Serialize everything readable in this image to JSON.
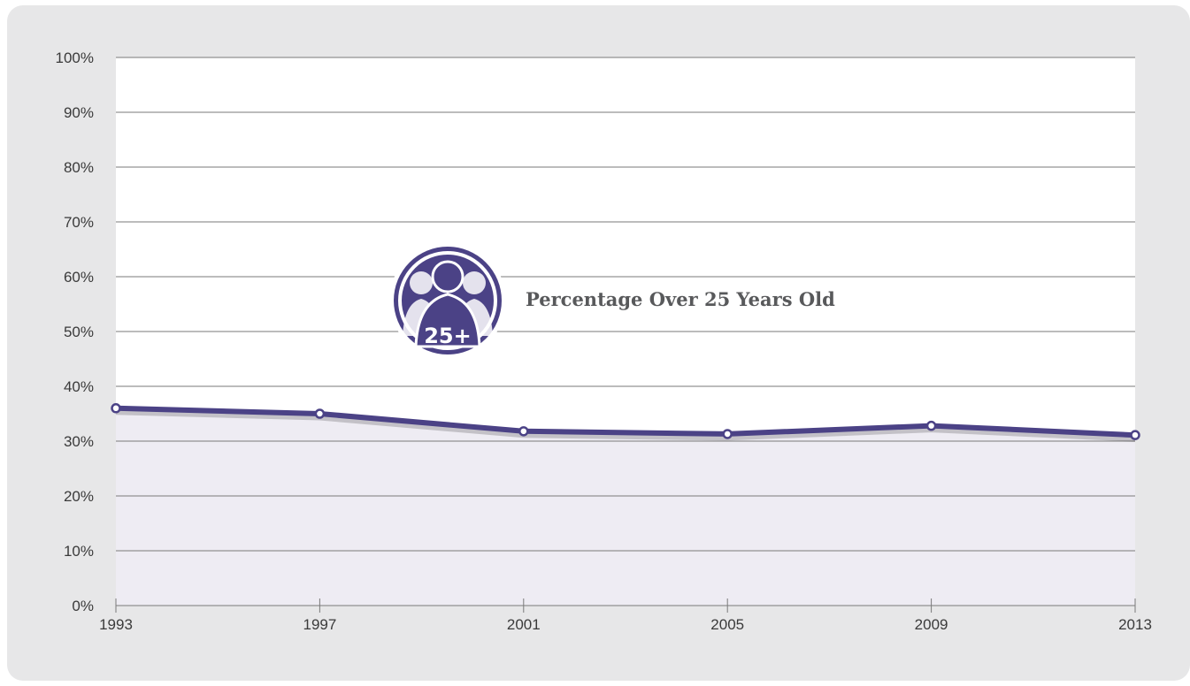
{
  "colors": {
    "line": "#4b4286",
    "fill": "#eeecf3",
    "plot_bg": "#ffffff",
    "panel_bg": "#e7e7e8",
    "gridline": "#7a7a7a",
    "badge": "#4b4286"
  },
  "icon": "group-of-people-icon",
  "badge": {
    "number_label": "25+",
    "title": "Percentage Over 25 Years Old"
  },
  "chart_data": {
    "type": "area",
    "x": [
      "1993",
      "1997",
      "2001",
      "2005",
      "2009",
      "2013"
    ],
    "series": [
      {
        "values": [
          36,
          35,
          31.8,
          31.3,
          32.8,
          31.1
        ]
      }
    ],
    "y_ticks": [
      "0%",
      "10%",
      "20%",
      "30%",
      "40%",
      "50%",
      "60%",
      "70%",
      "80%",
      "90%",
      "100%"
    ],
    "ylim": [
      0,
      100
    ],
    "y_unit": "%",
    "grid": true,
    "legend": "none"
  }
}
